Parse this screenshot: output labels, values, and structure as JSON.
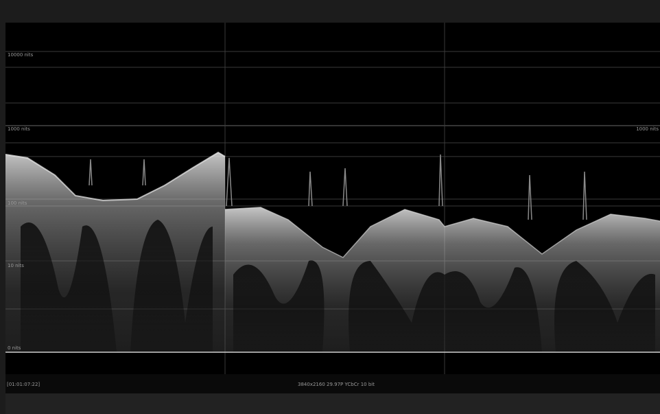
{
  "scale_labels": {
    "left": [
      "10000 nits",
      "1000 nits",
      "100 nits",
      "10 nits",
      "0 nits"
    ],
    "right": [
      "1000 nits"
    ]
  },
  "status_bar": {
    "timecode": "[01:01:07:22]",
    "format": "3840x2160 29.97P YCbCr 10 bit"
  }
}
